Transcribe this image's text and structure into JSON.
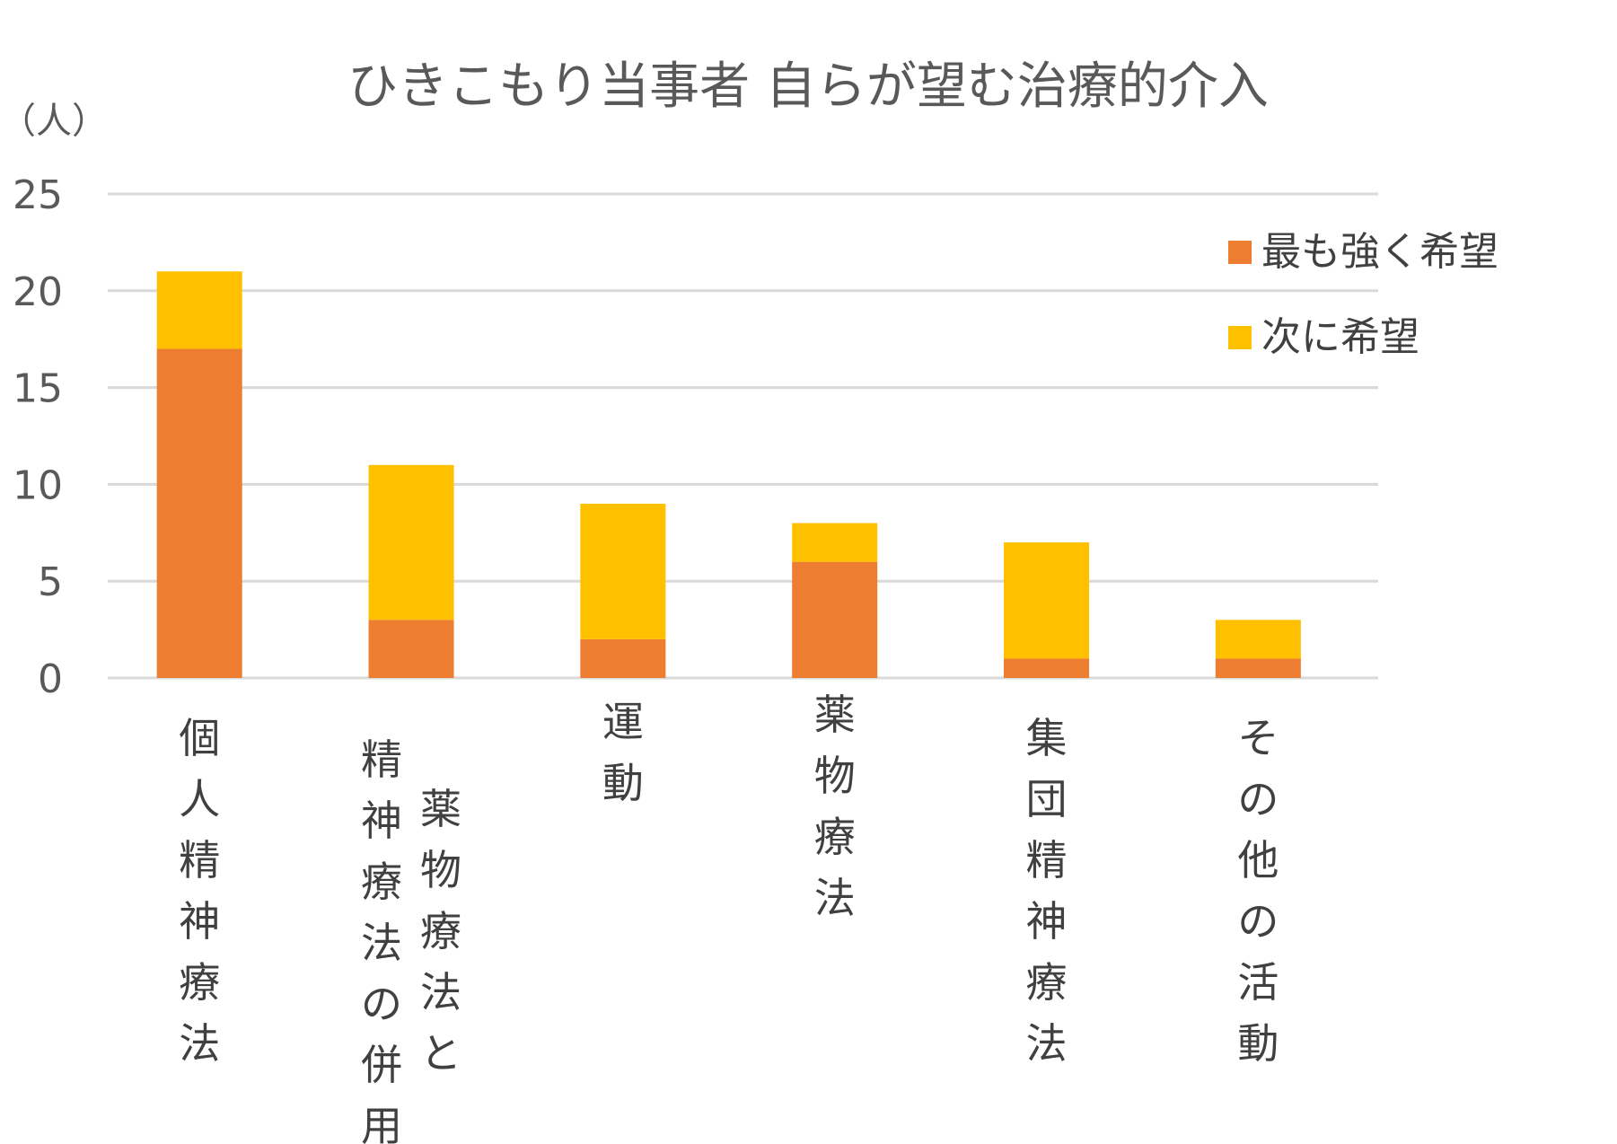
{
  "chart_data": {
    "type": "bar",
    "stacked": true,
    "title": "ひきこもり当事者 自らが望む治療的介入",
    "ylabel": "（人）",
    "ylim": [
      0,
      25
    ],
    "yticks": [
      0,
      5,
      10,
      15,
      20,
      25
    ],
    "grid": true,
    "legend_position": "top-right",
    "categories": [
      [
        "個人精神療法"
      ],
      [
        "精神療法の併用",
        "薬物療法と"
      ],
      [
        "運動"
      ],
      [
        "薬物療法"
      ],
      [
        "集団精神療法"
      ],
      [
        "その他の活動"
      ]
    ],
    "series": [
      {
        "name": "最も強く希望",
        "color": "#ED7D31",
        "values": [
          17,
          3,
          2,
          6,
          1,
          1
        ]
      },
      {
        "name": "次に希望",
        "color": "#FFC000",
        "values": [
          4,
          8,
          7,
          2,
          6,
          2
        ]
      }
    ]
  }
}
